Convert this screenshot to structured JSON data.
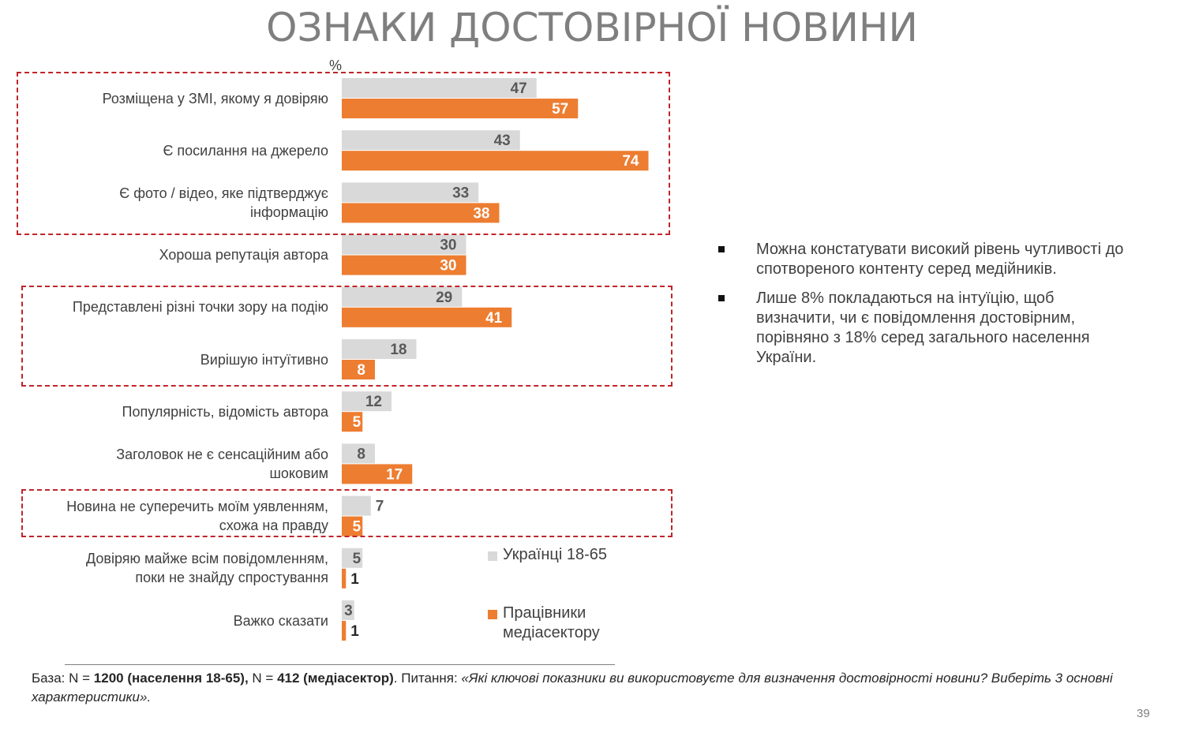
{
  "slide": {
    "title": "ОЗНАКИ ДОСТОВІРНОЇ НОВИНИ",
    "unit": "%",
    "page_number": "39"
  },
  "chart_data": {
    "type": "bar",
    "orientation": "horizontal",
    "unit": "%",
    "categories": [
      "Розміщена у ЗМІ, якому я довіряю",
      "Є посилання на джерело",
      "Є фото / відео, яке підтверджує інформацію",
      "Хороша репутація автора",
      "Представлені різні точки зору на подію",
      "Вирішую інтуїтивно",
      "Популярність, відомість автора",
      "Заголовок не є сенсаційним або шоковим",
      "Новина не суперечить моїм уявленням, схожа на правду",
      "Довіряю майже всім повідомленням, поки не знайду спростування",
      "Важко сказати"
    ],
    "series": [
      {
        "name": "Українці 18-65",
        "color": "#d9d9d9",
        "label_color": "#595959",
        "values": [
          47,
          43,
          33,
          30,
          29,
          18,
          12,
          8,
          7,
          5,
          3
        ]
      },
      {
        "name": "Працівники медіасектору",
        "color": "#ed7d31",
        "label_color": "#ffffff",
        "values": [
          57,
          74,
          38,
          30,
          41,
          8,
          5,
          17,
          5,
          1,
          1
        ]
      }
    ],
    "legend_position": "bottom-right",
    "highlighted_groups": [
      [
        0,
        2
      ],
      [
        4,
        5
      ],
      [
        8,
        8
      ]
    ],
    "grid": false
  },
  "category_lines": [
    [
      "Розміщена у ЗМІ, якому я довіряю"
    ],
    [
      "Є посилання на джерело"
    ],
    [
      "Є фото / відео, яке підтверджує",
      "інформацію"
    ],
    [
      "Хороша репутація автора"
    ],
    [
      "Представлені різні точки зору на подію"
    ],
    [
      "Вирішую інтуїтивно"
    ],
    [
      "Популярність, відомість автора"
    ],
    [
      "Заголовок не є сенсаційним або",
      "шоковим"
    ],
    [
      "Новина не суперечить моїм уявленням,",
      "схожа на правду"
    ],
    [
      "Довіряю майже всім повідомленням,",
      "поки не знайду спростування"
    ],
    [
      "Важко сказати"
    ]
  ],
  "legend": {
    "series1": "Українці 18-65",
    "series2_line1": "Працівники",
    "series2_line2": "медіасектору"
  },
  "bullets": [
    "Можна констатувати високий рівень чутливості до спотвореного контенту серед медійників.",
    "Лише 8% покладаються на інтуїцію, щоб визначити, чи є повідомлення достовірним, порівняно з 18% серед загального населення України."
  ],
  "footnote": {
    "base_prefix": "База: N = ",
    "n1": "1200 (населення 18-65),",
    "mid": " N = ",
    "n2": "412 (медіасектор)",
    "question_prefix": ". Питання: ",
    "question": "«Які ключові показники ви використовуєте для визначення достовірності новини? Виберіть 3 основні характеристики»."
  }
}
